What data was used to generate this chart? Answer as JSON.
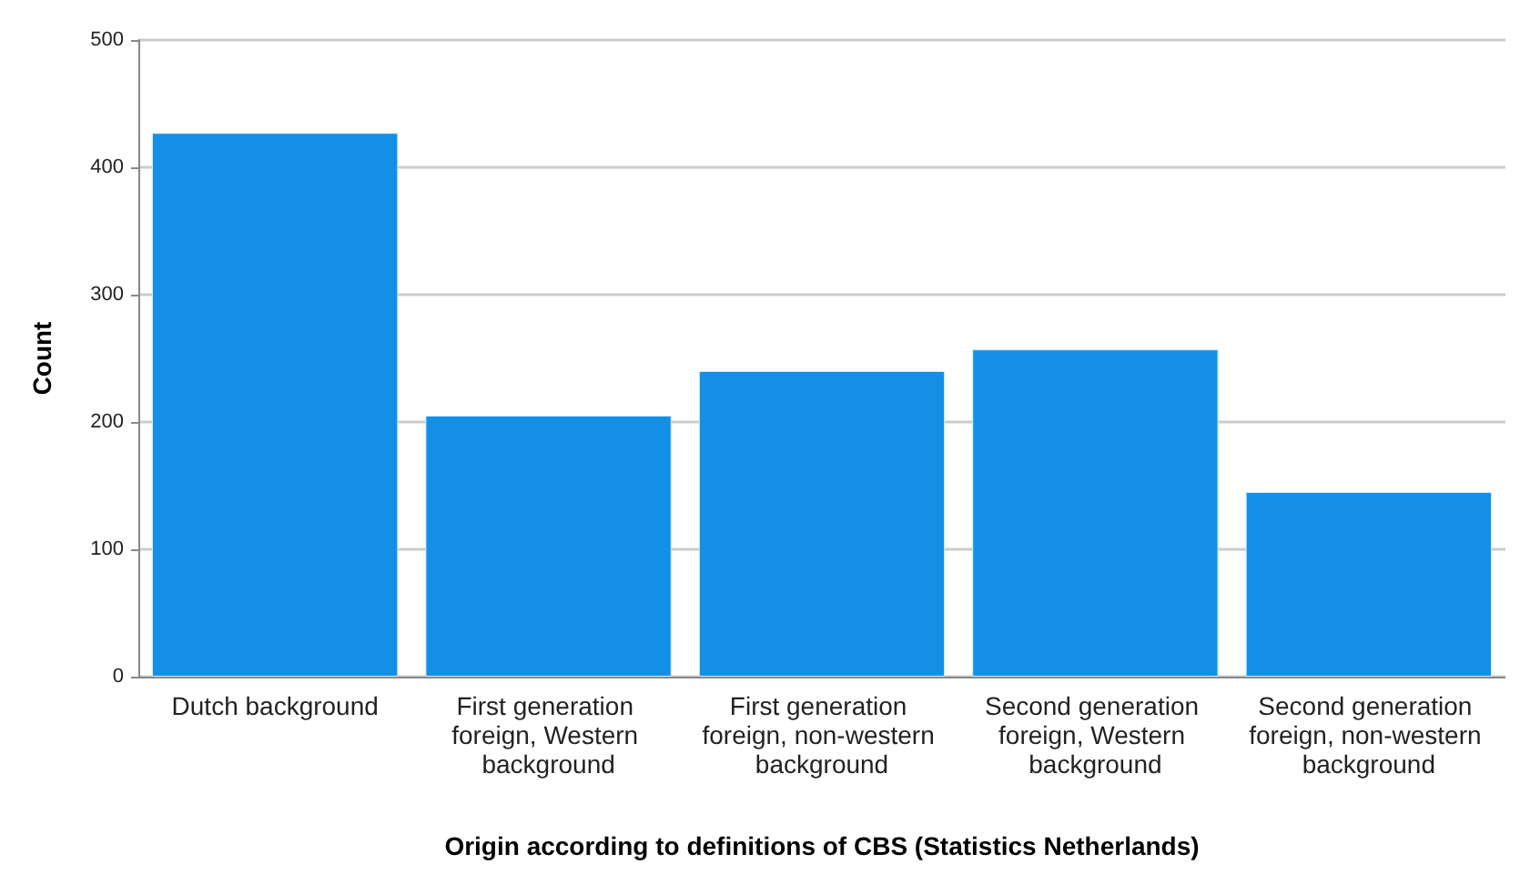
{
  "chart_data": {
    "type": "bar",
    "xlabel": "Origin according to definitions of CBS (Statistics Netherlands)",
    "ylabel": "Count",
    "categories": [
      "Dutch background",
      "First generation foreign, Western background",
      "First generation foreign, non-western background",
      "Second generation foreign, Western background",
      "Second generation foreign, non-western background"
    ],
    "values": [
      427,
      205,
      240,
      257,
      145
    ],
    "color": "#1390e6",
    "ylim": [
      0,
      500
    ],
    "yticks": [
      0,
      100,
      200,
      300,
      400,
      500
    ],
    "grid": "y"
  }
}
